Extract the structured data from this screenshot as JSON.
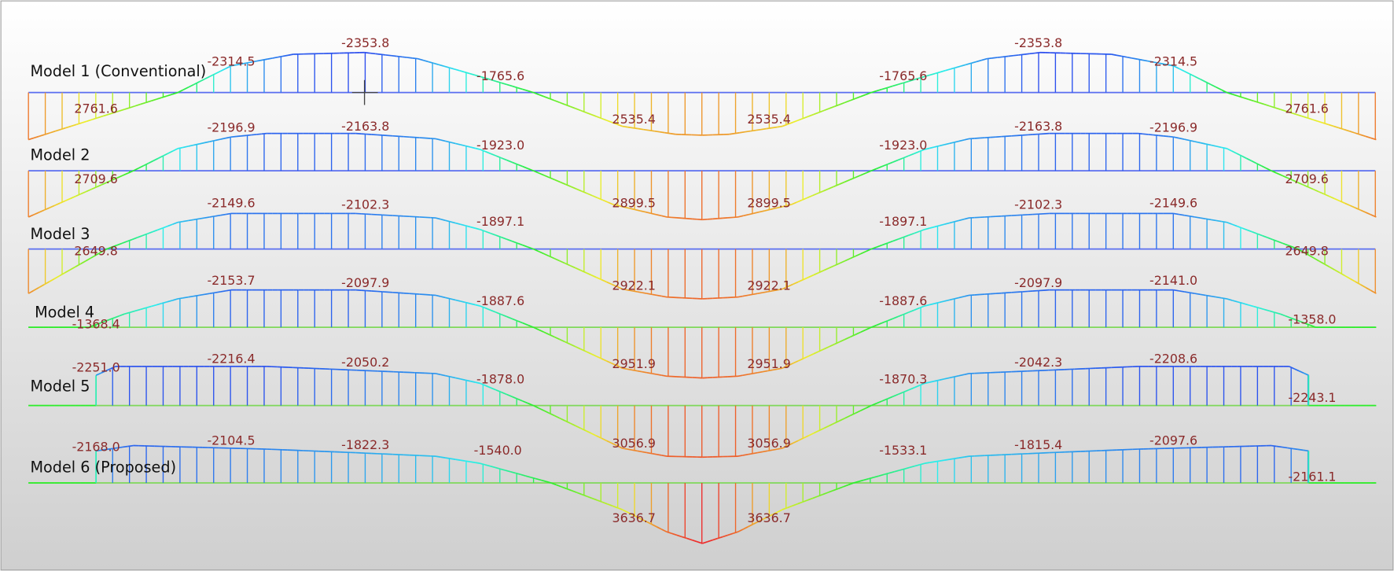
{
  "diagram": {
    "models": [
      {
        "name": "Model 1 (Conventional)",
        "labels": [
          "-2314.5",
          "-2353.8",
          "-1765.6",
          "2761.6",
          "2535.4",
          "2535.4",
          "-1765.6",
          "-2353.8",
          "-2314.5",
          "2761.6"
        ]
      },
      {
        "name": "Model 2",
        "labels": [
          "-2196.9",
          "-2163.8",
          "-1923.0",
          "2709.6",
          "2899.5",
          "2899.5",
          "-1923.0",
          "-2163.8",
          "-2196.9",
          "2709.6"
        ]
      },
      {
        "name": "Model 3",
        "labels": [
          "-2149.6",
          "-2102.3",
          "-1897.1",
          "2649.8",
          "2922.1",
          "2922.1",
          "-1897.1",
          "-2102.3",
          "-2149.6",
          "2649.8"
        ]
      },
      {
        "name": "Model 4",
        "labels": [
          "-2153.7",
          "-2097.9",
          "-1887.6",
          "-1368.4",
          "2951.9",
          "2951.9",
          "-1887.6",
          "-2097.9",
          "-2141.0",
          "-1358.0"
        ]
      },
      {
        "name": "Model 5",
        "labels": [
          "-2216.4",
          "-2050.2",
          "-1878.0",
          "-2251.0",
          "3056.9",
          "3056.9",
          "-1870.3",
          "-2042.3",
          "-2208.6",
          "-2243.1"
        ]
      },
      {
        "name": "Model 6 (Proposed)",
        "labels": [
          "-2104.5",
          "-1822.3",
          "-1540.0",
          "-2168.0",
          "3636.7",
          "3636.7",
          "-1533.1",
          "-1815.4",
          "-2097.6",
          "-2161.1"
        ]
      }
    ]
  }
}
